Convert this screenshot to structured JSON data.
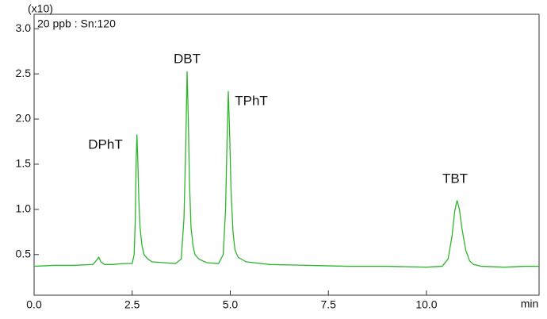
{
  "chart_data": {
    "type": "line",
    "y_multiplier": "(x10)",
    "x_unit": "min",
    "annotations": [
      "DPhT",
      "DBT",
      "TPhT",
      "TBT"
    ],
    "x": [
      0,
      0.5,
      1.0,
      1.5,
      1.6,
      1.65,
      1.7,
      1.8,
      2.0,
      2.3,
      2.5,
      2.55,
      2.58,
      2.6,
      2.62,
      2.64,
      2.67,
      2.7,
      2.75,
      2.8,
      2.9,
      3.0,
      3.3,
      3.6,
      3.75,
      3.82,
      3.86,
      3.9,
      3.93,
      3.96,
      4.0,
      4.05,
      4.1,
      4.2,
      4.4,
      4.7,
      4.82,
      4.88,
      4.92,
      4.95,
      4.98,
      5.02,
      5.07,
      5.12,
      5.2,
      5.4,
      6.0,
      7.0,
      8.0,
      9.0,
      10.0,
      10.4,
      10.55,
      10.65,
      10.72,
      10.78,
      10.84,
      10.9,
      11.0,
      11.1,
      11.2,
      11.4,
      12.0,
      12.5,
      12.87
    ],
    "series": [
      {
        "name": "20 ppb : Sn:120",
        "color": "#2db52d",
        "values": [
          0.37,
          0.38,
          0.38,
          0.39,
          0.44,
          0.47,
          0.42,
          0.39,
          0.39,
          0.4,
          0.4,
          0.5,
          0.9,
          1.5,
          1.83,
          1.6,
          1.1,
          0.8,
          0.6,
          0.5,
          0.45,
          0.42,
          0.41,
          0.4,
          0.45,
          0.9,
          1.6,
          2.53,
          2.0,
          1.3,
          0.8,
          0.6,
          0.5,
          0.45,
          0.41,
          0.4,
          0.5,
          1.0,
          1.8,
          2.31,
          1.9,
          1.2,
          0.75,
          0.55,
          0.47,
          0.42,
          0.39,
          0.38,
          0.37,
          0.37,
          0.36,
          0.37,
          0.45,
          0.7,
          0.98,
          1.1,
          1.0,
          0.8,
          0.55,
          0.43,
          0.39,
          0.37,
          0.36,
          0.37,
          0.37
        ]
      }
    ],
    "xlim": [
      0,
      12.87
    ],
    "ylim": [
      0.05,
      3.16
    ],
    "xticks": [
      {
        "value": 0,
        "label": "0.0"
      },
      2.5,
      {
        "value": 5,
        "label": "5.0"
      },
      7.5,
      {
        "value": 10,
        "label": "10.0"
      }
    ],
    "yticks": [
      0.5,
      {
        "value": 1,
        "label": "1.0"
      },
      1.5,
      {
        "value": 2,
        "label": "2.0"
      },
      2.5,
      {
        "value": 3,
        "label": "3.0"
      }
    ]
  }
}
